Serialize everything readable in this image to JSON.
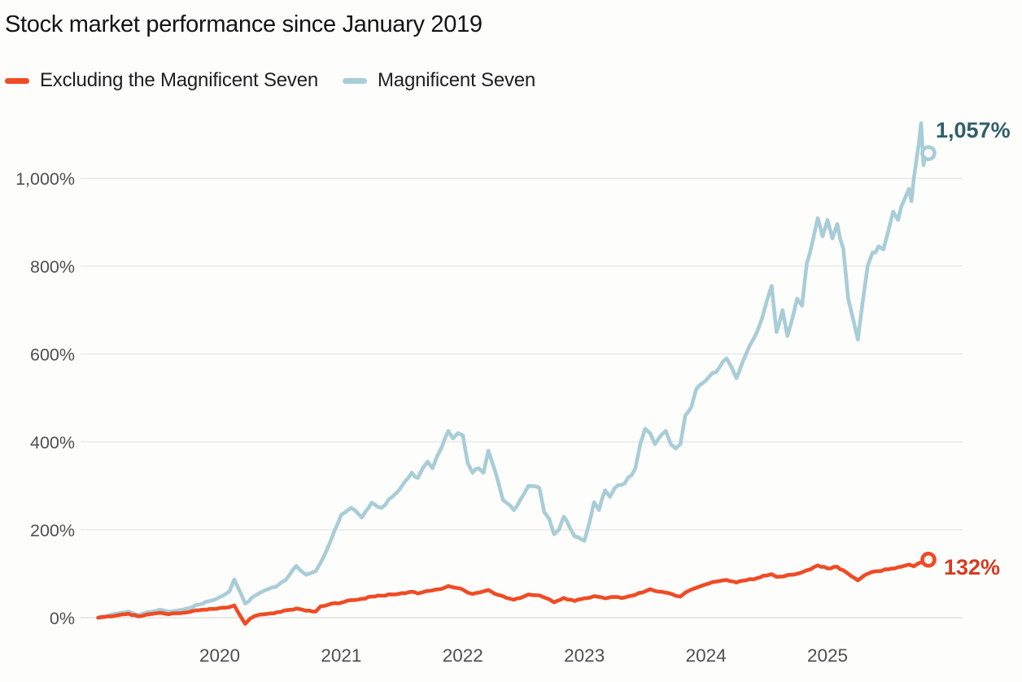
{
  "title": "Stock market performance since January 2019",
  "legend": {
    "items": [
      {
        "label": "Excluding the Magnificent Seven",
        "color": "#ef4b25"
      },
      {
        "label": "Magnificent Seven",
        "color": "#a8cdd7"
      }
    ]
  },
  "end_labels": {
    "mag7": "1,057%",
    "ex_mag7": "132%"
  },
  "colors": {
    "mag7_line": "#a8cdd7",
    "mag7_label": "#2e5f69",
    "ex_mag7_line": "#ef4b25",
    "ex_mag7_label": "#d63a1f",
    "grid": "#e5e5e5",
    "zero_line": "#dcdcdc",
    "tick_text": "#4f4f4f",
    "background": "#fdfdfb"
  },
  "chart_data": {
    "type": "line",
    "title": "Stock market performance since January 2019",
    "xlabel": "",
    "ylabel": "",
    "grid": "horizontal",
    "legend_position": "top-left",
    "x_axis": {
      "range": [
        2019.0,
        2026.1
      ],
      "ticks": [
        2020,
        2021,
        2022,
        2023,
        2024,
        2025
      ],
      "tick_labels": [
        "2020",
        "2021",
        "2022",
        "2023",
        "2024",
        "2025"
      ]
    },
    "y_axis": {
      "unit": "%",
      "range": [
        -60,
        1160
      ],
      "ticks": [
        0,
        200,
        400,
        600,
        800,
        1000
      ],
      "tick_labels": [
        "0%",
        "200%",
        "400%",
        "600%",
        "800%",
        "1,000%"
      ]
    },
    "series": [
      {
        "name": "Magnificent Seven",
        "color": "#a8cdd7",
        "end_value": 1057,
        "end_label": "1,057%",
        "points": [
          [
            2019.0,
            0
          ],
          [
            2019.08,
            4
          ],
          [
            2019.17,
            10
          ],
          [
            2019.25,
            14
          ],
          [
            2019.33,
            6
          ],
          [
            2019.42,
            13
          ],
          [
            2019.5,
            18
          ],
          [
            2019.58,
            14
          ],
          [
            2019.67,
            17
          ],
          [
            2019.75,
            22
          ],
          [
            2019.83,
            30
          ],
          [
            2019.92,
            38
          ],
          [
            2020.0,
            47
          ],
          [
            2020.08,
            60
          ],
          [
            2020.12,
            87
          ],
          [
            2020.21,
            32
          ],
          [
            2020.29,
            50
          ],
          [
            2020.37,
            62
          ],
          [
            2020.46,
            70
          ],
          [
            2020.54,
            85
          ],
          [
            2020.58,
            100
          ],
          [
            2020.63,
            118
          ],
          [
            2020.71,
            98
          ],
          [
            2020.79,
            106
          ],
          [
            2020.83,
            125
          ],
          [
            2020.92,
            180
          ],
          [
            2021.0,
            234
          ],
          [
            2021.08,
            250
          ],
          [
            2021.17,
            228
          ],
          [
            2021.25,
            262
          ],
          [
            2021.33,
            250
          ],
          [
            2021.42,
            275
          ],
          [
            2021.5,
            300
          ],
          [
            2021.58,
            330
          ],
          [
            2021.63,
            318
          ],
          [
            2021.67,
            340
          ],
          [
            2021.71,
            355
          ],
          [
            2021.75,
            340
          ],
          [
            2021.79,
            368
          ],
          [
            2021.83,
            390
          ],
          [
            2021.88,
            425
          ],
          [
            2021.92,
            408
          ],
          [
            2021.96,
            420
          ],
          [
            2022.0,
            415
          ],
          [
            2022.04,
            352
          ],
          [
            2022.08,
            330
          ],
          [
            2022.13,
            340
          ],
          [
            2022.17,
            330
          ],
          [
            2022.21,
            380
          ],
          [
            2022.29,
            310
          ],
          [
            2022.33,
            268
          ],
          [
            2022.42,
            245
          ],
          [
            2022.5,
            280
          ],
          [
            2022.54,
            300
          ],
          [
            2022.63,
            295
          ],
          [
            2022.67,
            240
          ],
          [
            2022.71,
            225
          ],
          [
            2022.75,
            190
          ],
          [
            2022.79,
            200
          ],
          [
            2022.83,
            230
          ],
          [
            2022.88,
            205
          ],
          [
            2022.92,
            185
          ],
          [
            2023.0,
            175
          ],
          [
            2023.04,
            215
          ],
          [
            2023.08,
            263
          ],
          [
            2023.12,
            245
          ],
          [
            2023.17,
            290
          ],
          [
            2023.21,
            275
          ],
          [
            2023.25,
            295
          ],
          [
            2023.33,
            305
          ],
          [
            2023.42,
            340
          ],
          [
            2023.46,
            395
          ],
          [
            2023.5,
            430
          ],
          [
            2023.54,
            420
          ],
          [
            2023.58,
            395
          ],
          [
            2023.63,
            415
          ],
          [
            2023.67,
            425
          ],
          [
            2023.71,
            395
          ],
          [
            2023.75,
            385
          ],
          [
            2023.79,
            395
          ],
          [
            2023.83,
            460
          ],
          [
            2023.88,
            480
          ],
          [
            2023.92,
            520
          ],
          [
            2024.0,
            540
          ],
          [
            2024.08,
            558
          ],
          [
            2024.17,
            590
          ],
          [
            2024.21,
            570
          ],
          [
            2024.25,
            545
          ],
          [
            2024.33,
            600
          ],
          [
            2024.42,
            650
          ],
          [
            2024.46,
            680
          ],
          [
            2024.5,
            720
          ],
          [
            2024.54,
            755
          ],
          [
            2024.58,
            650
          ],
          [
            2024.63,
            700
          ],
          [
            2024.67,
            641
          ],
          [
            2024.71,
            680
          ],
          [
            2024.75,
            726
          ],
          [
            2024.79,
            710
          ],
          [
            2024.83,
            807
          ],
          [
            2024.88,
            860
          ],
          [
            2024.92,
            909
          ],
          [
            2024.96,
            868
          ],
          [
            2025.0,
            905
          ],
          [
            2025.04,
            863
          ],
          [
            2025.08,
            896
          ],
          [
            2025.13,
            840
          ],
          [
            2025.17,
            726
          ],
          [
            2025.21,
            680
          ],
          [
            2025.25,
            633
          ],
          [
            2025.29,
            720
          ],
          [
            2025.33,
            800
          ],
          [
            2025.37,
            831
          ],
          [
            2025.42,
            845
          ],
          [
            2025.46,
            838
          ],
          [
            2025.5,
            880
          ],
          [
            2025.54,
            924
          ],
          [
            2025.58,
            905
          ],
          [
            2025.63,
            950
          ],
          [
            2025.67,
            976
          ],
          [
            2025.69,
            948
          ],
          [
            2025.71,
            1000
          ],
          [
            2025.75,
            1078
          ],
          [
            2025.77,
            1125
          ],
          [
            2025.79,
            1030
          ],
          [
            2025.81,
            1068
          ],
          [
            2025.83,
            1057
          ]
        ]
      },
      {
        "name": "Excluding the Magnificent Seven",
        "color": "#ef4b25",
        "end_value": 132,
        "end_label": "132%",
        "points": [
          [
            2019.0,
            0
          ],
          [
            2019.08,
            3
          ],
          [
            2019.17,
            6
          ],
          [
            2019.25,
            9
          ],
          [
            2019.33,
            3
          ],
          [
            2019.42,
            8
          ],
          [
            2019.5,
            11
          ],
          [
            2019.58,
            8
          ],
          [
            2019.67,
            10
          ],
          [
            2019.75,
            13
          ],
          [
            2019.83,
            17
          ],
          [
            2019.92,
            20
          ],
          [
            2020.0,
            22
          ],
          [
            2020.08,
            24
          ],
          [
            2020.12,
            28
          ],
          [
            2020.21,
            -14
          ],
          [
            2020.25,
            -2
          ],
          [
            2020.29,
            4
          ],
          [
            2020.33,
            7
          ],
          [
            2020.42,
            10
          ],
          [
            2020.5,
            13
          ],
          [
            2020.58,
            18
          ],
          [
            2020.63,
            21
          ],
          [
            2020.71,
            16
          ],
          [
            2020.79,
            14
          ],
          [
            2020.83,
            26
          ],
          [
            2020.92,
            32
          ],
          [
            2021.0,
            34
          ],
          [
            2021.08,
            40
          ],
          [
            2021.17,
            43
          ],
          [
            2021.25,
            48
          ],
          [
            2021.33,
            50
          ],
          [
            2021.42,
            53
          ],
          [
            2021.5,
            56
          ],
          [
            2021.58,
            59
          ],
          [
            2021.63,
            55
          ],
          [
            2021.67,
            58
          ],
          [
            2021.75,
            62
          ],
          [
            2021.83,
            66
          ],
          [
            2021.88,
            72
          ],
          [
            2021.92,
            69
          ],
          [
            2022.0,
            64
          ],
          [
            2022.04,
            57
          ],
          [
            2022.08,
            54
          ],
          [
            2022.17,
            60
          ],
          [
            2022.21,
            63
          ],
          [
            2022.29,
            52
          ],
          [
            2022.33,
            49
          ],
          [
            2022.42,
            41
          ],
          [
            2022.5,
            48
          ],
          [
            2022.54,
            53
          ],
          [
            2022.63,
            51
          ],
          [
            2022.71,
            42
          ],
          [
            2022.75,
            35
          ],
          [
            2022.83,
            45
          ],
          [
            2022.92,
            38
          ],
          [
            2023.0,
            44
          ],
          [
            2023.08,
            49
          ],
          [
            2023.17,
            44
          ],
          [
            2023.25,
            47
          ],
          [
            2023.33,
            46
          ],
          [
            2023.42,
            52
          ],
          [
            2023.5,
            60
          ],
          [
            2023.54,
            65
          ],
          [
            2023.58,
            61
          ],
          [
            2023.67,
            57
          ],
          [
            2023.75,
            50
          ],
          [
            2023.79,
            48
          ],
          [
            2023.83,
            57
          ],
          [
            2023.92,
            68
          ],
          [
            2024.0,
            76
          ],
          [
            2024.08,
            82
          ],
          [
            2024.17,
            86
          ],
          [
            2024.25,
            80
          ],
          [
            2024.33,
            85
          ],
          [
            2024.42,
            90
          ],
          [
            2024.5,
            96
          ],
          [
            2024.54,
            99
          ],
          [
            2024.58,
            93
          ],
          [
            2024.67,
            97
          ],
          [
            2024.75,
            100
          ],
          [
            2024.83,
            108
          ],
          [
            2024.92,
            119
          ],
          [
            2025.0,
            112
          ],
          [
            2025.08,
            116
          ],
          [
            2025.13,
            108
          ],
          [
            2025.17,
            100
          ],
          [
            2025.25,
            85
          ],
          [
            2025.33,
            100
          ],
          [
            2025.42,
            106
          ],
          [
            2025.5,
            110
          ],
          [
            2025.58,
            115
          ],
          [
            2025.63,
            118
          ],
          [
            2025.67,
            121
          ],
          [
            2025.71,
            117
          ],
          [
            2025.75,
            124
          ],
          [
            2025.79,
            128
          ],
          [
            2025.81,
            126
          ],
          [
            2025.83,
            132
          ]
        ]
      }
    ]
  }
}
